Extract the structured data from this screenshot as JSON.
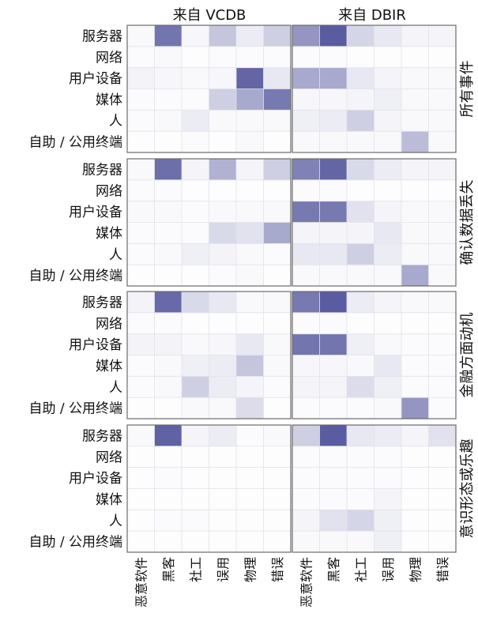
{
  "chart_data": {
    "type": "heatmap",
    "columns": [
      "来自 VCDB",
      "来自 DBIR"
    ],
    "rows": [
      "所有事件",
      "确认数据丢失",
      "金融方面动机",
      "意识形态或乐趣"
    ],
    "y_categories": [
      "服务器",
      "网络",
      "用户设备",
      "媒体",
      "人",
      "自助 / 公用终端"
    ],
    "x_categories": [
      "恶意软件",
      "黑客",
      "社工",
      "误用",
      "物理",
      "错误"
    ],
    "value_range": [
      0,
      1
    ],
    "color_scale": {
      "low": "#ffffff",
      "high": "#3c3f8f"
    },
    "panels": [
      {
        "row": "所有事件",
        "column": "来自 VCDB",
        "values": [
          [
            0.03,
            0.72,
            0.04,
            0.3,
            0.1,
            0.25
          ],
          [
            0.02,
            0.03,
            0.01,
            0.02,
            0.02,
            0.02
          ],
          [
            0.06,
            0.04,
            0.03,
            0.04,
            0.8,
            0.12
          ],
          [
            0.02,
            0.02,
            0.02,
            0.25,
            0.45,
            0.7
          ],
          [
            0.02,
            0.03,
            0.1,
            0.03,
            0.03,
            0.03
          ],
          [
            0.01,
            0.01,
            0.02,
            0.01,
            0.03,
            0.01
          ]
        ]
      },
      {
        "row": "所有事件",
        "column": "来自 DBIR",
        "values": [
          [
            0.55,
            0.85,
            0.22,
            0.12,
            0.05,
            0.05
          ],
          [
            0.02,
            0.02,
            0.01,
            0.01,
            0.01,
            0.01
          ],
          [
            0.45,
            0.45,
            0.12,
            0.05,
            0.03,
            0.03
          ],
          [
            0.04,
            0.04,
            0.05,
            0.08,
            0.03,
            0.03
          ],
          [
            0.08,
            0.1,
            0.25,
            0.05,
            0.03,
            0.03
          ],
          [
            0.03,
            0.03,
            0.03,
            0.03,
            0.35,
            0.03
          ]
        ]
      },
      {
        "row": "确认数据丢失",
        "column": "来自 VCDB",
        "values": [
          [
            0.03,
            0.75,
            0.05,
            0.4,
            0.05,
            0.25
          ],
          [
            0.02,
            0.02,
            0.01,
            0.01,
            0.01,
            0.01
          ],
          [
            0.03,
            0.03,
            0.02,
            0.03,
            0.03,
            0.03
          ],
          [
            0.02,
            0.02,
            0.02,
            0.2,
            0.15,
            0.45
          ],
          [
            0.02,
            0.03,
            0.08,
            0.06,
            0.03,
            0.02
          ],
          [
            0.01,
            0.01,
            0.01,
            0.02,
            0.03,
            0.01
          ]
        ]
      },
      {
        "row": "确认数据丢失",
        "column": "来自 DBIR",
        "values": [
          [
            0.65,
            0.8,
            0.2,
            0.1,
            0.05,
            0.05
          ],
          [
            0.02,
            0.02,
            0.01,
            0.01,
            0.01,
            0.01
          ],
          [
            0.7,
            0.7,
            0.15,
            0.05,
            0.03,
            0.03
          ],
          [
            0.05,
            0.05,
            0.05,
            0.12,
            0.03,
            0.03
          ],
          [
            0.12,
            0.12,
            0.25,
            0.1,
            0.03,
            0.03
          ],
          [
            0.03,
            0.03,
            0.03,
            0.03,
            0.45,
            0.03
          ]
        ]
      },
      {
        "row": "金融方面动机",
        "column": "来自 VCDB",
        "values": [
          [
            0.06,
            0.78,
            0.2,
            0.12,
            0.03,
            0.03
          ],
          [
            0.02,
            0.02,
            0.01,
            0.01,
            0.01,
            0.01
          ],
          [
            0.06,
            0.06,
            0.03,
            0.04,
            0.12,
            0.03
          ],
          [
            0.02,
            0.03,
            0.08,
            0.1,
            0.3,
            0.03
          ],
          [
            0.02,
            0.03,
            0.25,
            0.1,
            0.05,
            0.02
          ],
          [
            0.01,
            0.01,
            0.03,
            0.03,
            0.18,
            0.01
          ]
        ]
      },
      {
        "row": "金融方面动机",
        "column": "来自 DBIR",
        "values": [
          [
            0.7,
            0.85,
            0.1,
            0.05,
            0.03,
            0.03
          ],
          [
            0.02,
            0.02,
            0.01,
            0.01,
            0.01,
            0.01
          ],
          [
            0.72,
            0.72,
            0.08,
            0.03,
            0.02,
            0.02
          ],
          [
            0.04,
            0.04,
            0.03,
            0.12,
            0.02,
            0.02
          ],
          [
            0.05,
            0.05,
            0.18,
            0.08,
            0.02,
            0.02
          ],
          [
            0.02,
            0.02,
            0.02,
            0.03,
            0.55,
            0.02
          ]
        ]
      },
      {
        "row": "意识形态或乐趣",
        "column": "来自 VCDB",
        "values": [
          [
            0.03,
            0.82,
            0.05,
            0.1,
            0.02,
            0.03
          ],
          [
            0.01,
            0.01,
            0.01,
            0.01,
            0.01,
            0.01
          ],
          [
            0.01,
            0.02,
            0.01,
            0.01,
            0.01,
            0.01
          ],
          [
            0.01,
            0.01,
            0.01,
            0.01,
            0.01,
            0.01
          ],
          [
            0.01,
            0.02,
            0.02,
            0.01,
            0.01,
            0.01
          ],
          [
            0.01,
            0.01,
            0.01,
            0.01,
            0.01,
            0.01
          ]
        ]
      },
      {
        "row": "意识形态或乐趣",
        "column": "来自 DBIR",
        "values": [
          [
            0.25,
            0.85,
            0.12,
            0.1,
            0.05,
            0.15
          ],
          [
            0.02,
            0.02,
            0.02,
            0.02,
            0.01,
            0.01
          ],
          [
            0.02,
            0.02,
            0.02,
            0.02,
            0.01,
            0.01
          ],
          [
            0.02,
            0.02,
            0.02,
            0.05,
            0.01,
            0.01
          ],
          [
            0.05,
            0.15,
            0.22,
            0.08,
            0.01,
            0.01
          ],
          [
            0.03,
            0.03,
            0.03,
            0.08,
            0.01,
            0.01
          ]
        ]
      }
    ]
  }
}
